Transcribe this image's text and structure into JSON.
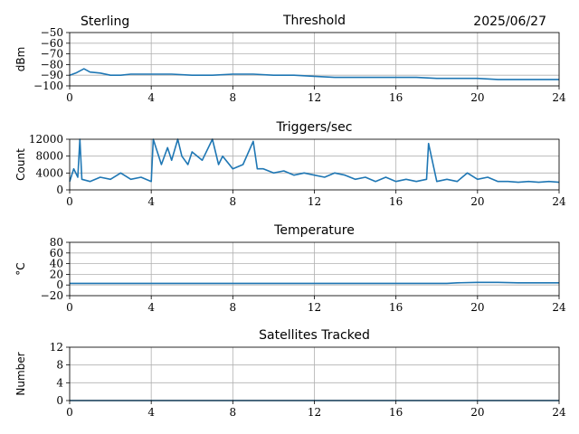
{
  "header": {
    "station": "Sterling",
    "date": "2025/06/27"
  },
  "colors": {
    "series": "#1f77b4",
    "grid": "#b0b0b0"
  },
  "chart_data": [
    {
      "type": "line",
      "title": "Threshold",
      "ylabel": "dBm",
      "xlim": [
        0,
        24
      ],
      "ylim": [
        -100,
        -50
      ],
      "xticks": [
        0,
        4,
        8,
        12,
        16,
        20,
        24
      ],
      "yticks": [
        -100,
        -90,
        -80,
        -70,
        -60,
        -50
      ],
      "ytick_labels": [
        "−100",
        "−90",
        "−80",
        "−70",
        "−60",
        "−50"
      ],
      "grid": true,
      "series": [
        {
          "x": [
            0,
            0.3,
            0.7,
            1.0,
            1.5,
            2.0,
            2.5,
            3.0,
            4.0,
            5.0,
            6.0,
            7.0,
            8.0,
            9.0,
            10.0,
            11.0,
            12.0,
            13.0,
            14.0,
            15.0,
            16.0,
            17.0,
            18.0,
            19.0,
            20.0,
            21.0,
            22.0,
            23.0,
            24.0
          ],
          "y": [
            -90,
            -88,
            -84,
            -87,
            -88,
            -90,
            -90,
            -89,
            -89,
            -89,
            -90,
            -90,
            -89,
            -89,
            -90,
            -90,
            -91,
            -92,
            -92,
            -92,
            -92,
            -92,
            -93,
            -93,
            -93,
            -94,
            -94,
            -94,
            -94
          ]
        }
      ]
    },
    {
      "type": "line",
      "title": "Triggers/sec",
      "ylabel": "Count",
      "xlim": [
        0,
        24
      ],
      "ylim": [
        0,
        12000
      ],
      "xticks": [
        0,
        4,
        8,
        12,
        16,
        20,
        24
      ],
      "yticks": [
        0,
        4000,
        8000,
        12000
      ],
      "grid": true,
      "series": [
        {
          "x": [
            0,
            0.2,
            0.4,
            0.5,
            0.6,
            1.0,
            1.5,
            2.0,
            2.5,
            3.0,
            3.5,
            4.0,
            4.1,
            4.3,
            4.5,
            4.8,
            5.0,
            5.3,
            5.5,
            5.8,
            6.0,
            6.5,
            7.0,
            7.3,
            7.5,
            8.0,
            8.5,
            9.0,
            9.2,
            9.5,
            10.0,
            10.5,
            11.0,
            11.5,
            12.0,
            12.5,
            13.0,
            13.5,
            14.0,
            14.5,
            15.0,
            15.5,
            16.0,
            16.5,
            17.0,
            17.5,
            17.6,
            18.0,
            18.5,
            19.0,
            19.5,
            20.0,
            20.5,
            21.0,
            21.5,
            22.0,
            22.5,
            23.0,
            23.5,
            24.0
          ],
          "y": [
            2000,
            5000,
            3000,
            12000,
            2500,
            2000,
            3000,
            2500,
            4000,
            2500,
            3000,
            2000,
            12000,
            9000,
            6000,
            10000,
            7000,
            12000,
            8000,
            6000,
            9000,
            7000,
            12000,
            6000,
            8000,
            5000,
            6000,
            11500,
            5000,
            5000,
            4000,
            4500,
            3500,
            4000,
            3500,
            3000,
            4000,
            3500,
            2500,
            3000,
            2000,
            3000,
            2000,
            2500,
            2000,
            2500,
            11000,
            2000,
            2500,
            2000,
            4000,
            2500,
            3000,
            2000,
            2000,
            1800,
            2000,
            1800,
            2000,
            1800
          ]
        }
      ]
    },
    {
      "type": "line",
      "title": "Temperature",
      "ylabel": "°C",
      "xlim": [
        0,
        24
      ],
      "ylim": [
        -20,
        80
      ],
      "xticks": [
        0,
        4,
        8,
        12,
        16,
        20,
        24
      ],
      "yticks": [
        -20,
        0,
        20,
        40,
        60,
        80
      ],
      "ytick_labels": [
        "−20",
        "0",
        "20",
        "40",
        "60",
        "80"
      ],
      "grid": true,
      "series": [
        {
          "x": [
            0,
            4,
            8,
            12,
            16,
            18.5,
            19,
            20,
            21,
            22,
            23,
            24
          ],
          "y": [
            3,
            3,
            3,
            3,
            3,
            3,
            4,
            5,
            5,
            4,
            4,
            4
          ]
        }
      ]
    },
    {
      "type": "line",
      "title": "Satellites Tracked",
      "ylabel": "Number",
      "xlim": [
        0,
        24
      ],
      "ylim": [
        0,
        12
      ],
      "xticks": [
        0,
        4,
        8,
        12,
        16,
        20,
        24
      ],
      "yticks": [
        0,
        4,
        8,
        12
      ],
      "grid": true,
      "series": [
        {
          "x": [
            0,
            24
          ],
          "y": [
            0,
            0
          ]
        }
      ]
    }
  ]
}
